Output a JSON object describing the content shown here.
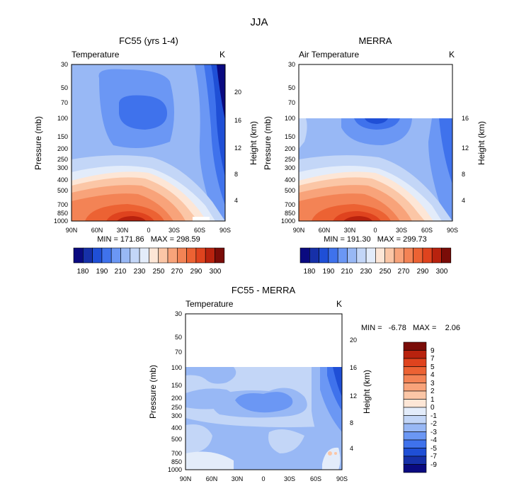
{
  "page": {
    "title": "JJA"
  },
  "chart_data": [
    {
      "type": "heatmap",
      "title": "FC55 (yrs 1-4)",
      "left_label": "Temperature",
      "unit": "K",
      "ylabel": "Pressure (mb)",
      "y2label": "Height (km)",
      "x_ticks": [
        "90N",
        "60N",
        "30N",
        "0",
        "30S",
        "60S",
        "90S"
      ],
      "y_ticks": [
        "30",
        "50",
        "70",
        "100",
        "150",
        "200",
        "250",
        "300",
        "400",
        "500",
        "700",
        "850",
        "1000"
      ],
      "y2_ticks": [
        "20",
        "16",
        "12",
        "8",
        "4"
      ],
      "stats": "MIN = 171.86   MAX = 298.59",
      "colorbar_ticks": [
        "180",
        "190",
        "210",
        "230",
        "250",
        "270",
        "290",
        "300"
      ]
    },
    {
      "type": "heatmap",
      "title": "MERRA",
      "left_label": "Air Temperature",
      "unit": "K",
      "ylabel": "Pressure (mb)",
      "y2label": "Height (km)",
      "x_ticks": [
        "90N",
        "60N",
        "30N",
        "0",
        "30S",
        "60S",
        "90S"
      ],
      "y_ticks": [
        "30",
        "50",
        "70",
        "100",
        "150",
        "200",
        "250",
        "300",
        "400",
        "500",
        "700",
        "850",
        "1000"
      ],
      "y2_ticks": [
        "16",
        "12",
        "8",
        "4"
      ],
      "stats": "MIN = 191.30   MAX = 299.73",
      "colorbar_ticks": [
        "180",
        "190",
        "210",
        "230",
        "250",
        "270",
        "290",
        "300"
      ]
    },
    {
      "type": "heatmap",
      "title": "FC55 - MERRA",
      "left_label": "Temperature",
      "unit": "K",
      "ylabel": "Pressure (mb)",
      "y2label": "Height (km)",
      "x_ticks": [
        "90N",
        "60N",
        "30N",
        "0",
        "30S",
        "60S",
        "90S"
      ],
      "y_ticks": [
        "30",
        "50",
        "70",
        "100",
        "150",
        "200",
        "250",
        "300",
        "400",
        "500",
        "700",
        "850",
        "1000"
      ],
      "y2_ticks": [
        "20",
        "16",
        "12",
        "8",
        "4"
      ],
      "stats": "MIN =   -6.78   MAX =    2.06",
      "colorbar_ticks": [
        "9",
        "7",
        "5",
        "4",
        "3",
        "2",
        "1",
        "0",
        "-1",
        "-2",
        "-3",
        "-4",
        "-5",
        "-7",
        "-9"
      ]
    }
  ],
  "colors": {
    "temp_scale": [
      "#0a0a80",
      "#1630a8",
      "#1f4fd6",
      "#3f72ec",
      "#6b97f4",
      "#98b8f5",
      "#c3d6f7",
      "#e3ecfa",
      "#fde6d6",
      "#fbc6a6",
      "#f8a37a",
      "#f38355",
      "#ec6233",
      "#df431e",
      "#b8220e",
      "#7a0c08"
    ],
    "diff_scale": [
      "#7a0c08",
      "#b8220e",
      "#df431e",
      "#ec6233",
      "#f38355",
      "#f8a37a",
      "#fbc6a6",
      "#fde6d6",
      "#e3ecfa",
      "#c3d6f7",
      "#98b8f5",
      "#6b97f4",
      "#3f72ec",
      "#1f4fd6",
      "#1630a8",
      "#0a0a80"
    ]
  }
}
